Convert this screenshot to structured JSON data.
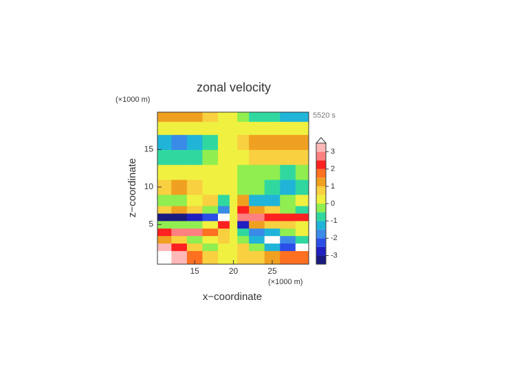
{
  "chart_data": {
    "type": "contour",
    "title": "zonal velocity",
    "x_label": "x−coordinate",
    "y_label": "z−coordinate",
    "x_unit": "(×1000 m)",
    "y_unit": "(×1000 m)",
    "time_label": "5520 s",
    "xlim": [
      10.2,
      29.7
    ],
    "ylim": [
      -0.3,
      20
    ],
    "xticks": [
      15,
      20,
      25
    ],
    "yticks": [
      5,
      10,
      15
    ],
    "x": [
      11,
      13,
      15,
      17,
      19,
      20,
      21,
      23,
      25,
      27,
      29
    ],
    "y": [
      1,
      2,
      3,
      4,
      5,
      6,
      7,
      8,
      10,
      12,
      14,
      16,
      18,
      19.5
    ],
    "z": [
      [
        3.6,
        3.0,
        1.5,
        0.5,
        0.3,
        0.2,
        0.5,
        0.8,
        1.2,
        1.5,
        1.5
      ],
      [
        3.2,
        2.0,
        0.5,
        -0.3,
        0.3,
        0.2,
        0.5,
        -0.5,
        -1.5,
        -2.5,
        -3.6
      ],
      [
        1.0,
        0.5,
        -0.5,
        0.0,
        0.5,
        0.2,
        -0.5,
        -1.5,
        -3.6,
        -2.0,
        -1.0
      ],
      [
        2.0,
        2.5,
        2.5,
        1.5,
        0.8,
        0.2,
        -1.0,
        -2.0,
        -1.5,
        -0.5,
        0.0
      ],
      [
        -0.5,
        -0.5,
        -0.3,
        0.2,
        2.0,
        0.3,
        -3.0,
        1.0,
        0.5,
        0.5,
        0.3
      ],
      [
        -3.3,
        -3.3,
        -3.0,
        -2.5,
        -3.6,
        0.3,
        2.8,
        2.5,
        2.2,
        2.0,
        2.0
      ],
      [
        0.5,
        1.0,
        0.5,
        -0.5,
        -2.0,
        0.2,
        2.0,
        1.0,
        0.5,
        -0.5,
        -1.0
      ],
      [
        -0.5,
        -0.3,
        0.2,
        0.8,
        -1.0,
        0.2,
        1.0,
        -1.5,
        -1.5,
        -0.5,
        0.2
      ],
      [
        0.8,
        1.0,
        0.8,
        0.3,
        0.2,
        0.1,
        -0.2,
        -0.3,
        -0.8,
        -1.2,
        -1.0
      ],
      [
        0.2,
        0.3,
        0.2,
        0.1,
        0.1,
        0.1,
        -0.1,
        -0.3,
        -0.5,
        -0.8,
        -0.5
      ],
      [
        -0.6,
        -0.8,
        -0.7,
        -0.3,
        0.1,
        0.1,
        0.3,
        0.6,
        0.8,
        0.8,
        0.6
      ],
      [
        -1.2,
        -1.6,
        -1.3,
        -0.8,
        0.1,
        0.1,
        0.8,
        1.2,
        1.4,
        1.4,
        1.2
      ],
      [
        0.3,
        0.3,
        0.3,
        0.2,
        0.2,
        0.1,
        0.1,
        0.2,
        0.2,
        0.2,
        0.2
      ],
      [
        1.2,
        1.2,
        1.0,
        0.6,
        0.3,
        0.1,
        -0.3,
        -0.6,
        -1.0,
        -1.2,
        -1.5
      ]
    ],
    "levels": [
      -3.5,
      -3,
      -2.5,
      -2,
      -1.5,
      -1,
      -0.5,
      0,
      0.5,
      1,
      1.5,
      2,
      2.5,
      3,
      3.5
    ],
    "colors": [
      "#1a1a80",
      "#2020c0",
      "#2a4ee8",
      "#3a8ae8",
      "#20b4d8",
      "#30d8a0",
      "#90ee50",
      "#f0f040",
      "#f8d040",
      "#f0a020",
      "#ff7020",
      "#ff2020",
      "#ff8080",
      "#ffb8b8"
    ],
    "out_of_range_color": "#ffffff",
    "cbar_ticks": [
      3,
      2,
      1,
      0,
      -1,
      -2,
      -3
    ]
  }
}
